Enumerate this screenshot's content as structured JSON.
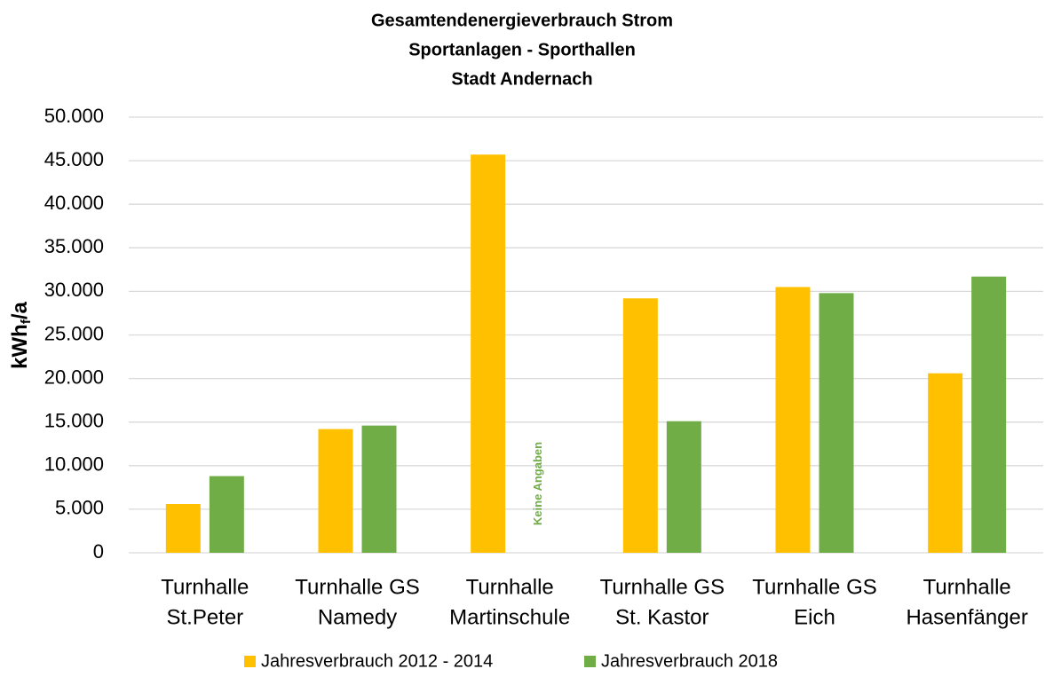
{
  "chart_data": {
    "type": "bar",
    "title": [
      "Gesamtendenergieverbrauch Strom",
      "Sportanlagen - Sporthallen",
      "Stadt Andernach"
    ],
    "ylabel": {
      "main": "kWh",
      "sub": "f",
      "tail": "/a"
    },
    "categories": [
      [
        "Turnhalle",
        "St.Peter"
      ],
      [
        "Turnhalle GS",
        "Namedy"
      ],
      [
        "Turnhalle",
        "Martinschule"
      ],
      [
        "Turnhalle GS",
        "St. Kastor"
      ],
      [
        "Turnhalle GS",
        "Eich"
      ],
      [
        "Turnhalle",
        "Hasenfänger"
      ]
    ],
    "series": [
      {
        "name": "Jahresverbrauch 2012 - 2014",
        "color": "#ffc000",
        "values": [
          5600,
          14200,
          45700,
          29200,
          30500,
          20600
        ]
      },
      {
        "name": "Jahresverbrauch 2018",
        "color": "#70ad47",
        "values": [
          8800,
          14600,
          null,
          15100,
          29800,
          31700
        ]
      }
    ],
    "annotations": [
      {
        "text": "Keine Angaben",
        "color": "#70ad47"
      }
    ],
    "ylim": [
      0,
      50000
    ],
    "yticks": [
      0,
      {
        "value": 5000,
        "label": "5.000"
      },
      {
        "value": 10000,
        "label": "10.000"
      },
      {
        "value": 15000,
        "label": "15.000"
      },
      {
        "value": 20000,
        "label": "20.000"
      },
      {
        "value": 25000,
        "label": "25.000"
      },
      {
        "value": 30000,
        "label": "30.000"
      },
      {
        "value": 35000,
        "label": "35.000"
      },
      {
        "value": 40000,
        "label": "40.000"
      },
      {
        "value": 45000,
        "label": "45.000"
      },
      {
        "value": 50000,
        "label": "50.000"
      }
    ],
    "grid": true,
    "legend": "bottom"
  }
}
